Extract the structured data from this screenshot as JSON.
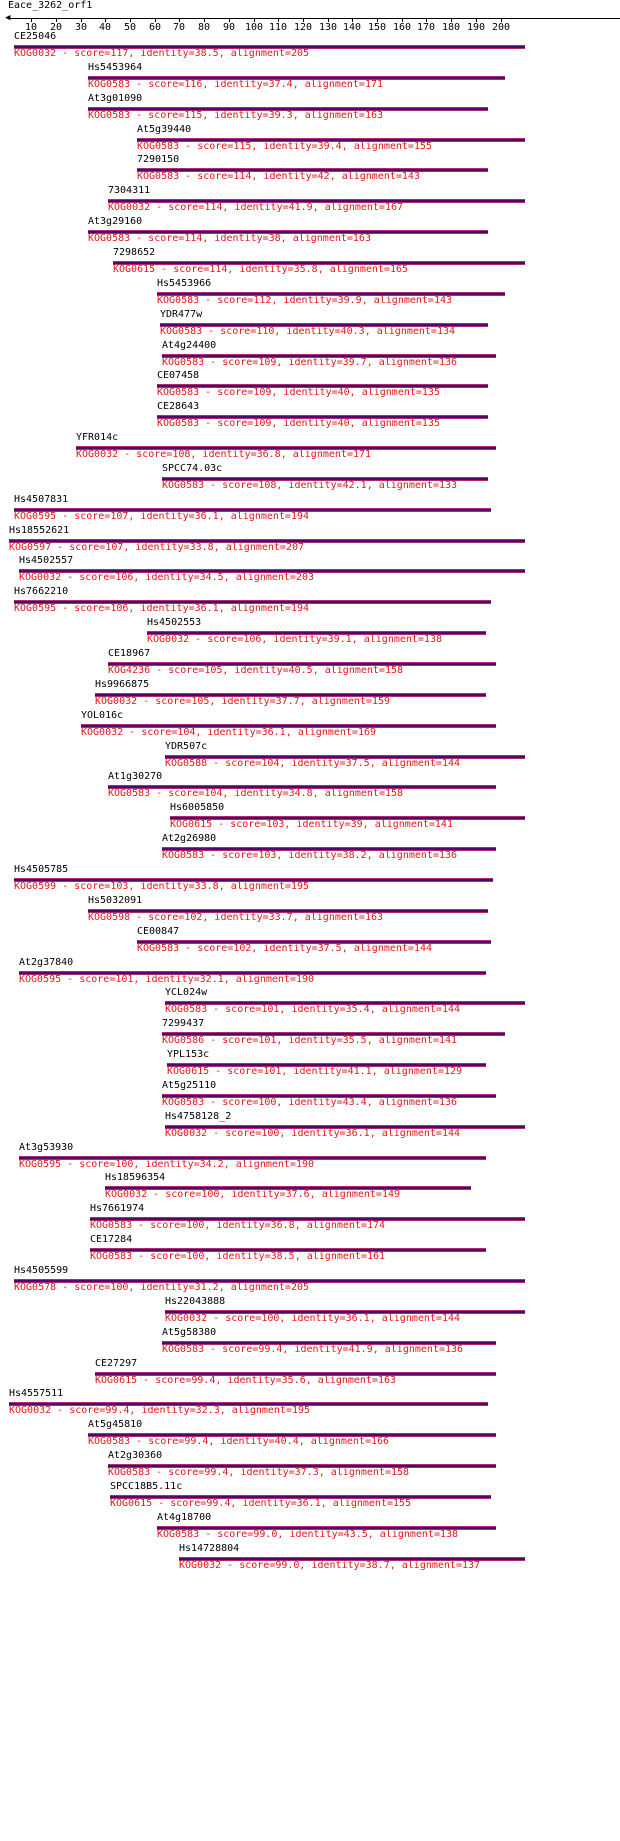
{
  "query": {
    "name": "Eace_3262_orf1",
    "ticks": [
      "10",
      "20",
      "30",
      "40",
      "50",
      "60",
      "70",
      "80",
      "90",
      "100",
      "110",
      "120",
      "130",
      "140",
      "150",
      "160",
      "170",
      "180",
      "190",
      "200"
    ]
  },
  "colors": {
    "bar": "#4b0a6e",
    "bar_edge": "#b22a6a",
    "desc": "#e01818"
  },
  "hits": [
    {
      "name": "CE25046",
      "desc": "KOG0032 - score=117, identity=38.5, alignment=205",
      "start": 3,
      "end": 210
    },
    {
      "name": "Hs5453964",
      "desc": "KOG0583 - score=116, identity=37.4, alignment=171",
      "start": 33,
      "end": 202
    },
    {
      "name": "At3g01090",
      "desc": "KOG0583 - score=115, identity=39.3, alignment=163",
      "start": 33,
      "end": 195
    },
    {
      "name": "At5g39440",
      "desc": "KOG0583 - score=115, identity=39.4, alignment=155",
      "start": 53,
      "end": 210
    },
    {
      "name": "7290150",
      "desc": "KOG0583 - score=114, identity=42, alignment=143",
      "start": 53,
      "end": 195
    },
    {
      "name": "7304311",
      "desc": "KOG0032 - score=114, identity=41.9, alignment=167",
      "start": 41,
      "end": 210
    },
    {
      "name": "At3g29160",
      "desc": "KOG0583 - score=114, identity=38, alignment=163",
      "start": 33,
      "end": 195
    },
    {
      "name": "7298652",
      "desc": "KOG0615 - score=114, identity=35.8, alignment=165",
      "start": 43,
      "end": 210
    },
    {
      "name": "Hs5453966",
      "desc": "KOG0583 - score=112, identity=39.9, alignment=143",
      "start": 61,
      "end": 202
    },
    {
      "name": "YDR477w",
      "desc": "KOG0583 - score=110, identity=40.3, alignment=134",
      "start": 62,
      "end": 195
    },
    {
      "name": "At4g24400",
      "desc": "KOG0583 - score=109, identity=39.7, alignment=136",
      "start": 63,
      "end": 198
    },
    {
      "name": "CE07458",
      "desc": "KOG0583 - score=109, identity=40, alignment=135",
      "start": 61,
      "end": 195
    },
    {
      "name": "CE28643",
      "desc": "KOG0583 - score=109, identity=40, alignment=135",
      "start": 61,
      "end": 195
    },
    {
      "name": "YFR014c",
      "desc": "KOG0032 - score=108, identity=36.8, alignment=171",
      "start": 28,
      "end": 198
    },
    {
      "name": "SPCC74.03c",
      "desc": "KOG0583 - score=108, identity=42.1, alignment=133",
      "start": 63,
      "end": 195
    },
    {
      "name": "Hs4507831",
      "desc": "KOG0595 - score=107, identity=36.1, alignment=194",
      "start": 3,
      "end": 196
    },
    {
      "name": "Hs18552621",
      "desc": "KOG0597 - score=107, identity=33.8, alignment=207",
      "start": 1,
      "end": 210
    },
    {
      "name": "Hs4502557",
      "desc": "KOG0032 - score=106, identity=34.5, alignment=203",
      "start": 5,
      "end": 210
    },
    {
      "name": "Hs7662210",
      "desc": "KOG0595 - score=106, identity=36.1, alignment=194",
      "start": 3,
      "end": 196
    },
    {
      "name": "Hs4502553",
      "desc": "KOG0032 - score=106, identity=39.1, alignment=138",
      "start": 57,
      "end": 194
    },
    {
      "name": "CE18967",
      "desc": "KOG4236 - score=105, identity=40.5, alignment=158",
      "start": 41,
      "end": 198
    },
    {
      "name": "Hs9966875",
      "desc": "KOG0032 - score=105, identity=37.7, alignment=159",
      "start": 36,
      "end": 194
    },
    {
      "name": "YOL016c",
      "desc": "KOG0032 - score=104, identity=36.1, alignment=169",
      "start": 30,
      "end": 198
    },
    {
      "name": "YDR507c",
      "desc": "KOG0588 - score=104, identity=37.5, alignment=144",
      "start": 64,
      "end": 210
    },
    {
      "name": "At1g30270",
      "desc": "KOG0583 - score=104, identity=34.8, alignment=158",
      "start": 41,
      "end": 198
    },
    {
      "name": "Hs6005850",
      "desc": "KOG0615 - score=103, identity=39, alignment=141",
      "start": 66,
      "end": 210
    },
    {
      "name": "At2g26980",
      "desc": "KOG0583 - score=103, identity=38.2, alignment=136",
      "start": 63,
      "end": 198
    },
    {
      "name": "Hs4505785",
      "desc": "KOG0599 - score=103, identity=33.8, alignment=195",
      "start": 3,
      "end": 197
    },
    {
      "name": "Hs5032091",
      "desc": "KOG0598 - score=102, identity=33.7, alignment=163",
      "start": 33,
      "end": 195
    },
    {
      "name": "CE00847",
      "desc": "KOG0583 - score=102, identity=37.5, alignment=144",
      "start": 53,
      "end": 196
    },
    {
      "name": "At2g37840",
      "desc": "KOG0595 - score=101, identity=32.1, alignment=190",
      "start": 5,
      "end": 194
    },
    {
      "name": "YCL024w",
      "desc": "KOG0583 - score=101, identity=35.4, alignment=144",
      "start": 64,
      "end": 210
    },
    {
      "name": "7299437",
      "desc": "KOG0586 - score=101, identity=35.5, alignment=141",
      "start": 63,
      "end": 202
    },
    {
      "name": "YPL153c",
      "desc": "KOG0615 - score=101, identity=41.1, alignment=129",
      "start": 65,
      "end": 194
    },
    {
      "name": "At5g25110",
      "desc": "KOG0583 - score=100, identity=43.4, alignment=136",
      "start": 63,
      "end": 198
    },
    {
      "name": "Hs4758128_2",
      "desc": "KOG0032 - score=100, identity=36.1, alignment=144",
      "start": 64,
      "end": 210
    },
    {
      "name": "At3g53930",
      "desc": "KOG0595 - score=100, identity=34.2, alignment=190",
      "start": 5,
      "end": 194
    },
    {
      "name": "Hs18596354",
      "desc": "KOG0032 - score=100, identity=37.6, alignment=149",
      "start": 40,
      "end": 188
    },
    {
      "name": "Hs7661974",
      "desc": "KOG0583 - score=100, identity=36.8, alignment=174",
      "start": 34,
      "end": 210
    },
    {
      "name": "CE17284",
      "desc": "KOG0583 - score=100, identity=38.5, alignment=161",
      "start": 34,
      "end": 194
    },
    {
      "name": "Hs4505599",
      "desc": "KOG0578 - score=100, identity=31.2, alignment=205",
      "start": 3,
      "end": 210
    },
    {
      "name": "Hs22043888",
      "desc": "KOG0032 - score=100, identity=36.1, alignment=144",
      "start": 64,
      "end": 210
    },
    {
      "name": "At5g58380",
      "desc": "KOG0583 - score=99.4, identity=41.9, alignment=136",
      "start": 63,
      "end": 198
    },
    {
      "name": "CE27297",
      "desc": "KOG0615 - score=99.4, identity=35.6, alignment=163",
      "start": 36,
      "end": 198
    },
    {
      "name": "Hs4557511",
      "desc": "KOG0032 - score=99.4, identity=32.3, alignment=195",
      "start": 1,
      "end": 195
    },
    {
      "name": "At5g45810",
      "desc": "KOG0583 - score=99.4, identity=40.4, alignment=166",
      "start": 33,
      "end": 198
    },
    {
      "name": "At2g30360",
      "desc": "KOG0583 - score=99.4, identity=37.3, alignment=158",
      "start": 41,
      "end": 198
    },
    {
      "name": "SPCC18B5.11c",
      "desc": "KOG0615 - score=99.4, identity=36.1, alignment=155",
      "start": 42,
      "end": 196
    },
    {
      "name": "At4g18700",
      "desc": "KOG0583 - score=99.0, identity=43.5, alignment=138",
      "start": 61,
      "end": 198
    },
    {
      "name": "Hs14728804",
      "desc": "KOG0032 - score=99.0, identity=38.7, alignment=137",
      "start": 70,
      "end": 210
    }
  ]
}
